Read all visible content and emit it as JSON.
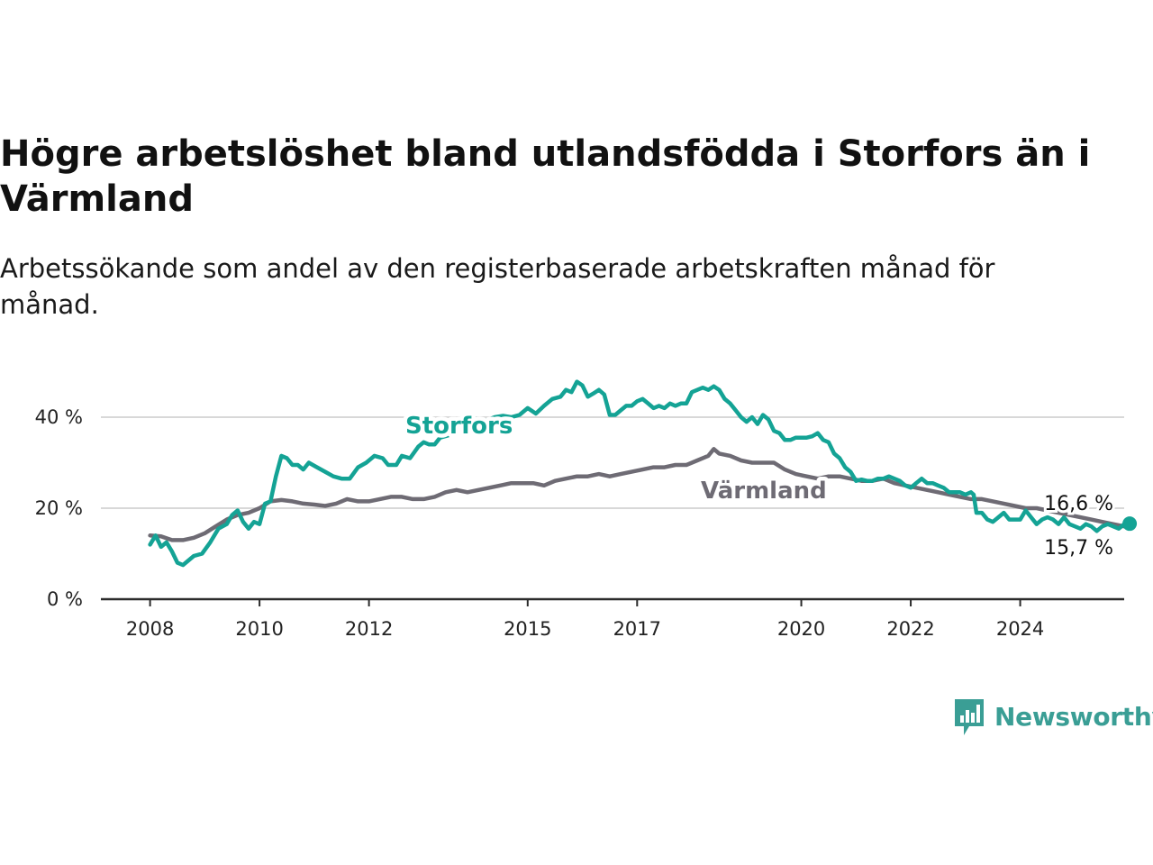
{
  "title": "Högre arbetslöshet bland utlandsfödda i Storfors än i Värmland",
  "subtitle": "Arbetssökande som andel av den registerbaserade arbetskraften månad för månad.",
  "brand": {
    "name": "Newsworthy",
    "icon": "newsworthy-logo-icon",
    "color": "#3a9e95"
  },
  "chart_data": {
    "type": "line",
    "x_ticks": [
      "2008",
      "2010",
      "2012",
      "2015",
      "2017",
      "2020",
      "2022",
      "2024"
    ],
    "x_tick_values": [
      2008.0,
      2010.0,
      2012.0,
      2014.9,
      2016.9,
      2019.9,
      2021.9,
      2023.9
    ],
    "y_ticks": [
      "0 %",
      "20 %",
      "40 %"
    ],
    "y_tick_values": [
      0,
      20,
      40
    ],
    "ylim": [
      0,
      48
    ],
    "xlim": [
      2007.2,
      2025.8
    ],
    "grid": "horizontal",
    "series": [
      {
        "name": "Storfors",
        "color": "#14a395",
        "label_at": 2012.7,
        "end_label": "16,6 %",
        "points": [
          [
            2008.0,
            12.0
          ],
          [
            2008.1,
            14.0
          ],
          [
            2008.2,
            11.5
          ],
          [
            2008.3,
            12.5
          ],
          [
            2008.4,
            10.5
          ],
          [
            2008.5,
            8.0
          ],
          [
            2008.6,
            7.5
          ],
          [
            2008.8,
            9.5
          ],
          [
            2008.95,
            10.0
          ],
          [
            2009.1,
            12.5
          ],
          [
            2009.25,
            15.5
          ],
          [
            2009.4,
            16.5
          ],
          [
            2009.5,
            18.5
          ],
          [
            2009.6,
            19.5
          ],
          [
            2009.7,
            17.0
          ],
          [
            2009.8,
            15.5
          ],
          [
            2009.9,
            17.0
          ],
          [
            2010.0,
            16.5
          ],
          [
            2010.1,
            21.0
          ],
          [
            2010.2,
            21.5
          ],
          [
            2010.3,
            27.0
          ],
          [
            2010.4,
            31.5
          ],
          [
            2010.5,
            31.0
          ],
          [
            2010.6,
            29.5
          ],
          [
            2010.7,
            29.5
          ],
          [
            2010.8,
            28.5
          ],
          [
            2010.9,
            30.0
          ],
          [
            2011.05,
            29.0
          ],
          [
            2011.2,
            28.0
          ],
          [
            2011.35,
            27.0
          ],
          [
            2011.5,
            26.5
          ],
          [
            2011.65,
            26.5
          ],
          [
            2011.8,
            29.0
          ],
          [
            2011.95,
            30.0
          ],
          [
            2012.1,
            31.5
          ],
          [
            2012.25,
            31.0
          ],
          [
            2012.35,
            29.5
          ],
          [
            2012.5,
            29.5
          ],
          [
            2012.6,
            31.5
          ],
          [
            2012.75,
            31.0
          ],
          [
            2012.9,
            33.5
          ],
          [
            2013.0,
            34.5
          ],
          [
            2013.1,
            34.0
          ],
          [
            2013.2,
            34.0
          ],
          [
            2013.3,
            35.5
          ],
          [
            2013.45,
            36.0
          ],
          [
            2013.55,
            39.0
          ],
          [
            2013.7,
            39.5
          ],
          [
            2013.85,
            39.8
          ],
          [
            2014.0,
            39.5
          ],
          [
            2014.15,
            39.3
          ],
          [
            2014.3,
            40.0
          ],
          [
            2014.45,
            40.3
          ],
          [
            2014.6,
            40.0
          ],
          [
            2014.75,
            40.5
          ],
          [
            2014.9,
            42.0
          ],
          [
            2015.05,
            40.8
          ],
          [
            2015.2,
            42.5
          ],
          [
            2015.35,
            44.0
          ],
          [
            2015.5,
            44.5
          ],
          [
            2015.6,
            46.0
          ],
          [
            2015.7,
            45.5
          ],
          [
            2015.8,
            47.8
          ],
          [
            2015.9,
            47.0
          ],
          [
            2016.0,
            44.5
          ],
          [
            2016.1,
            45.2
          ],
          [
            2016.2,
            46.0
          ],
          [
            2016.3,
            45.0
          ],
          [
            2016.4,
            40.5
          ],
          [
            2016.5,
            40.5
          ],
          [
            2016.6,
            41.5
          ],
          [
            2016.7,
            42.5
          ],
          [
            2016.8,
            42.5
          ],
          [
            2016.9,
            43.5
          ],
          [
            2017.0,
            44.0
          ],
          [
            2017.1,
            43.0
          ],
          [
            2017.2,
            42.0
          ],
          [
            2017.3,
            42.5
          ],
          [
            2017.4,
            42.0
          ],
          [
            2017.5,
            43.0
          ],
          [
            2017.6,
            42.5
          ],
          [
            2017.7,
            43.0
          ],
          [
            2017.8,
            43.0
          ],
          [
            2017.9,
            45.5
          ],
          [
            2018.0,
            46.0
          ],
          [
            2018.1,
            46.5
          ],
          [
            2018.2,
            46.0
          ],
          [
            2018.3,
            46.8
          ],
          [
            2018.4,
            46.0
          ],
          [
            2018.5,
            44.0
          ],
          [
            2018.6,
            43.0
          ],
          [
            2018.7,
            41.5
          ],
          [
            2018.8,
            40.0
          ],
          [
            2018.9,
            39.0
          ],
          [
            2019.0,
            40.0
          ],
          [
            2019.1,
            38.5
          ],
          [
            2019.2,
            40.5
          ],
          [
            2019.3,
            39.5
          ],
          [
            2019.4,
            37.0
          ],
          [
            2019.5,
            36.5
          ],
          [
            2019.6,
            35.0
          ],
          [
            2019.7,
            35.0
          ],
          [
            2019.8,
            35.5
          ],
          [
            2019.9,
            35.5
          ],
          [
            2020.0,
            35.5
          ],
          [
            2020.1,
            35.8
          ],
          [
            2020.2,
            36.5
          ],
          [
            2020.3,
            35.0
          ],
          [
            2020.4,
            34.5
          ],
          [
            2020.5,
            32.0
          ],
          [
            2020.6,
            31.0
          ],
          [
            2020.7,
            29.0
          ],
          [
            2020.8,
            28.0
          ],
          [
            2020.9,
            26.0
          ],
          [
            2021.0,
            26.3
          ],
          [
            2021.1,
            26.0
          ],
          [
            2021.2,
            26.0
          ],
          [
            2021.3,
            26.5
          ],
          [
            2021.4,
            26.5
          ],
          [
            2021.5,
            27.0
          ],
          [
            2021.6,
            26.5
          ],
          [
            2021.7,
            26.0
          ],
          [
            2021.8,
            25.0
          ],
          [
            2021.9,
            24.5
          ],
          [
            2022.0,
            25.5
          ],
          [
            2022.1,
            26.5
          ],
          [
            2022.2,
            25.5
          ],
          [
            2022.3,
            25.5
          ],
          [
            2022.4,
            25.0
          ],
          [
            2022.5,
            24.5
          ],
          [
            2022.6,
            23.5
          ],
          [
            2022.7,
            23.5
          ],
          [
            2022.8,
            23.5
          ],
          [
            2022.9,
            23.0
          ],
          [
            2023.0,
            23.5
          ],
          [
            2023.05,
            23.0
          ],
          [
            2023.1,
            19.0
          ],
          [
            2023.2,
            19.0
          ],
          [
            2023.3,
            17.5
          ],
          [
            2023.4,
            17.0
          ],
          [
            2023.5,
            18.0
          ],
          [
            2023.6,
            19.0
          ],
          [
            2023.7,
            17.5
          ],
          [
            2023.8,
            17.5
          ],
          [
            2023.9,
            17.5
          ],
          [
            2024.0,
            19.5
          ],
          [
            2024.1,
            18.0
          ],
          [
            2024.2,
            16.5
          ],
          [
            2024.3,
            17.5
          ],
          [
            2024.4,
            18.0
          ],
          [
            2024.5,
            17.5
          ],
          [
            2024.6,
            16.5
          ],
          [
            2024.7,
            18.0
          ],
          [
            2024.8,
            16.5
          ],
          [
            2024.9,
            16.0
          ],
          [
            2025.0,
            15.5
          ],
          [
            2025.1,
            16.5
          ],
          [
            2025.2,
            16.0
          ],
          [
            2025.3,
            15.0
          ],
          [
            2025.4,
            16.0
          ],
          [
            2025.5,
            16.5
          ],
          [
            2025.6,
            16.0
          ],
          [
            2025.7,
            15.5
          ],
          [
            2025.8,
            16.5
          ],
          [
            2025.9,
            16.6
          ]
        ]
      },
      {
        "name": "Värmland",
        "color": "#6e6b74",
        "label_at": 2018.4,
        "end_label": "15,7 %",
        "points": [
          [
            2008.0,
            14.0
          ],
          [
            2008.2,
            13.8
          ],
          [
            2008.4,
            13.0
          ],
          [
            2008.6,
            13.0
          ],
          [
            2008.8,
            13.5
          ],
          [
            2009.0,
            14.5
          ],
          [
            2009.2,
            16.0
          ],
          [
            2009.4,
            17.5
          ],
          [
            2009.6,
            18.5
          ],
          [
            2009.8,
            19.0
          ],
          [
            2010.0,
            20.0
          ],
          [
            2010.2,
            21.5
          ],
          [
            2010.4,
            21.8
          ],
          [
            2010.6,
            21.5
          ],
          [
            2010.8,
            21.0
          ],
          [
            2011.0,
            20.8
          ],
          [
            2011.2,
            20.5
          ],
          [
            2011.4,
            21.0
          ],
          [
            2011.6,
            22.0
          ],
          [
            2011.8,
            21.5
          ],
          [
            2012.0,
            21.5
          ],
          [
            2012.2,
            22.0
          ],
          [
            2012.4,
            22.5
          ],
          [
            2012.6,
            22.5
          ],
          [
            2012.8,
            22.0
          ],
          [
            2013.0,
            22.0
          ],
          [
            2013.2,
            22.5
          ],
          [
            2013.4,
            23.5
          ],
          [
            2013.6,
            24.0
          ],
          [
            2013.8,
            23.5
          ],
          [
            2014.0,
            24.0
          ],
          [
            2014.2,
            24.5
          ],
          [
            2014.4,
            25.0
          ],
          [
            2014.6,
            25.5
          ],
          [
            2014.8,
            25.5
          ],
          [
            2015.0,
            25.5
          ],
          [
            2015.2,
            25.0
          ],
          [
            2015.4,
            26.0
          ],
          [
            2015.6,
            26.5
          ],
          [
            2015.8,
            27.0
          ],
          [
            2016.0,
            27.0
          ],
          [
            2016.2,
            27.5
          ],
          [
            2016.4,
            27.0
          ],
          [
            2016.6,
            27.5
          ],
          [
            2016.8,
            28.0
          ],
          [
            2017.0,
            28.5
          ],
          [
            2017.2,
            29.0
          ],
          [
            2017.4,
            29.0
          ],
          [
            2017.6,
            29.5
          ],
          [
            2017.8,
            29.5
          ],
          [
            2018.0,
            30.5
          ],
          [
            2018.2,
            31.5
          ],
          [
            2018.3,
            33.0
          ],
          [
            2018.4,
            32.0
          ],
          [
            2018.6,
            31.5
          ],
          [
            2018.8,
            30.5
          ],
          [
            2019.0,
            30.0
          ],
          [
            2019.2,
            30.0
          ],
          [
            2019.4,
            30.0
          ],
          [
            2019.6,
            28.5
          ],
          [
            2019.8,
            27.5
          ],
          [
            2020.0,
            27.0
          ],
          [
            2020.2,
            26.5
          ],
          [
            2020.4,
            27.0
          ],
          [
            2020.6,
            27.0
          ],
          [
            2020.8,
            26.5
          ],
          [
            2021.0,
            26.0
          ],
          [
            2021.2,
            26.0
          ],
          [
            2021.4,
            26.5
          ],
          [
            2021.6,
            25.5
          ],
          [
            2021.8,
            25.0
          ],
          [
            2022.0,
            24.5
          ],
          [
            2022.2,
            24.0
          ],
          [
            2022.4,
            23.5
          ],
          [
            2022.6,
            23.0
          ],
          [
            2022.8,
            22.5
          ],
          [
            2023.0,
            22.0
          ],
          [
            2023.2,
            22.0
          ],
          [
            2023.4,
            21.5
          ],
          [
            2023.6,
            21.0
          ],
          [
            2023.8,
            20.5
          ],
          [
            2024.0,
            20.0
          ],
          [
            2024.2,
            20.0
          ],
          [
            2024.4,
            19.5
          ],
          [
            2024.6,
            19.0
          ],
          [
            2024.8,
            18.5
          ],
          [
            2025.0,
            18.0
          ],
          [
            2025.2,
            17.5
          ],
          [
            2025.4,
            17.0
          ],
          [
            2025.6,
            16.5
          ],
          [
            2025.8,
            16.0
          ],
          [
            2025.9,
            15.7
          ]
        ]
      }
    ]
  }
}
